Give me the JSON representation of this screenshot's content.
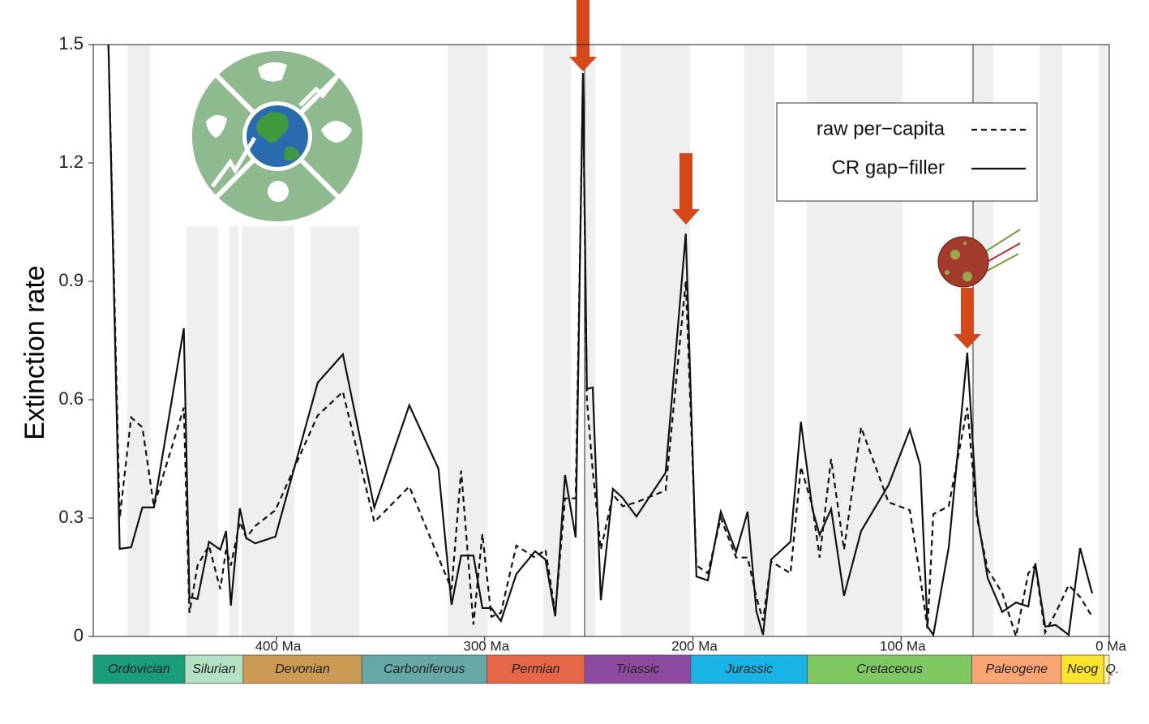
{
  "chart_data": {
    "type": "line",
    "ylabel": "Extinction rate",
    "xlim": [
      488,
      0
    ],
    "ylim": [
      0,
      1.5
    ],
    "xticks": [
      {
        "value": 400,
        "label": "400 Ma"
      },
      {
        "value": 300,
        "label": "300 Ma"
      },
      {
        "value": 200,
        "label": "200 Ma"
      },
      {
        "value": 100,
        "label": "100 Ma"
      },
      {
        "value": 0,
        "label": "0 Ma"
      }
    ],
    "yticks": [
      0,
      0.3,
      0.6,
      0.9,
      1.2,
      1.5
    ],
    "legend": "upper right",
    "x": [
      480.7,
      475.3,
      469.8,
      464.4,
      458.9,
      444.5,
      441.8,
      437.9,
      432.4,
      427.0,
      424.2,
      421.9,
      417.6,
      414.5,
      410.2,
      400.5,
      380.2,
      368.1,
      353.0,
      336.2,
      322.2,
      315.9,
      311.3,
      305.4,
      301.1,
      296.8,
      292.2,
      284.8,
      275.8,
      270.8,
      266.1,
      261.4,
      256.3,
      252.8,
      250.9,
      248.1,
      244.2,
      238.4,
      233.7,
      227.1,
      213.1,
      203.4,
      198.3,
      192.8,
      186.6,
      179.2,
      173.7,
      169.5,
      166.3,
      162.4,
      153.1,
      148.1,
      142.6,
      139.1,
      133.6,
      127.4,
      119.2,
      106.0,
      95.8,
      90.8,
      87.3,
      84.5,
      77.1,
      68.2,
      63.5,
      58.4,
      51.4,
      44.8,
      38.9,
      35.5,
      30.8,
      25.7,
      19.5,
      14.0,
      8.2
    ],
    "series": [
      {
        "name": "raw per−capita",
        "color": "#111111",
        "linestyle": "dashed",
        "values": [
          1.5,
          0.3,
          0.555,
          0.53,
          0.33,
          0.58,
          0.06,
          0.18,
          0.23,
          0.12,
          0.22,
          0.18,
          0.29,
          0.25,
          0.28,
          0.32,
          0.56,
          0.62,
          0.29,
          0.38,
          0.2,
          0.12,
          0.42,
          0.03,
          0.26,
          0.05,
          0.06,
          0.23,
          0.2,
          0.22,
          0.06,
          0.35,
          0.35,
          1.4,
          0.6,
          0.42,
          0.22,
          0.36,
          0.33,
          0.34,
          0.37,
          0.9,
          0.18,
          0.16,
          0.3,
          0.2,
          0.2,
          0.1,
          0.04,
          0.19,
          0.16,
          0.43,
          0.33,
          0.2,
          0.45,
          0.22,
          0.53,
          0.34,
          0.32,
          0.15,
          0.02,
          0.31,
          0.33,
          0.58,
          0.3,
          0.17,
          0.11,
          0.0,
          0.16,
          0.18,
          0.01,
          0.06,
          0.13,
          0.1,
          0.05
        ]
      },
      {
        "name": "CR gap−filler",
        "color": "#111111",
        "linestyle": "solid",
        "values": [
          1.5,
          0.222,
          0.226,
          0.327,
          0.327,
          0.781,
          0.099,
          0.095,
          0.24,
          0.22,
          0.267,
          0.078,
          0.325,
          0.249,
          0.236,
          0.253,
          0.643,
          0.715,
          0.327,
          0.586,
          0.425,
          0.08,
          0.205,
          0.205,
          0.072,
          0.072,
          0.039,
          0.158,
          0.216,
          0.195,
          0.051,
          0.409,
          0.251,
          1.428,
          0.627,
          0.631,
          0.092,
          0.374,
          0.351,
          0.304,
          0.415,
          1.021,
          0.152,
          0.142,
          0.316,
          0.214,
          0.316,
          0.064,
          0.004,
          0.195,
          0.24,
          0.544,
          0.323,
          0.257,
          0.323,
          0.103,
          0.267,
          0.384,
          0.524,
          0.434,
          0.025,
          0.004,
          0.226,
          0.719,
          0.31,
          0.148,
          0.062,
          0.086,
          0.076,
          0.185,
          0.025,
          0.029,
          0.004,
          0.224,
          0.109
        ]
      }
    ],
    "periods": [
      {
        "name": "Ordovician",
        "start": 488,
        "end": 444,
        "color": "#1a9e7a"
      },
      {
        "name": "Silurian",
        "start": 444,
        "end": 416,
        "color": "#b3e1c4"
      },
      {
        "name": "Devonian",
        "start": 416,
        "end": 359,
        "color": "#cb9a55"
      },
      {
        "name": "Carboniferous",
        "start": 359,
        "end": 299,
        "color": "#67a8a8"
      },
      {
        "name": "Permian",
        "start": 299,
        "end": 252,
        "color": "#e56748"
      },
      {
        "name": "Triassic",
        "start": 252,
        "end": 201,
        "color": "#8c4aa0"
      },
      {
        "name": "Jurassic",
        "start": 201,
        "end": 145,
        "color": "#1ab3e6"
      },
      {
        "name": "Cretaceous",
        "start": 145,
        "end": 66,
        "color": "#80c863"
      },
      {
        "name": "Paleogene",
        "start": 66,
        "end": 23,
        "color": "#fba574"
      },
      {
        "name": "Neog",
        "start": 23,
        "end": 2.6,
        "color": "#fde22e"
      },
      {
        "name": "Q.",
        "start": 2.6,
        "end": 0,
        "color": "#fff3a0"
      }
    ]
  }
}
